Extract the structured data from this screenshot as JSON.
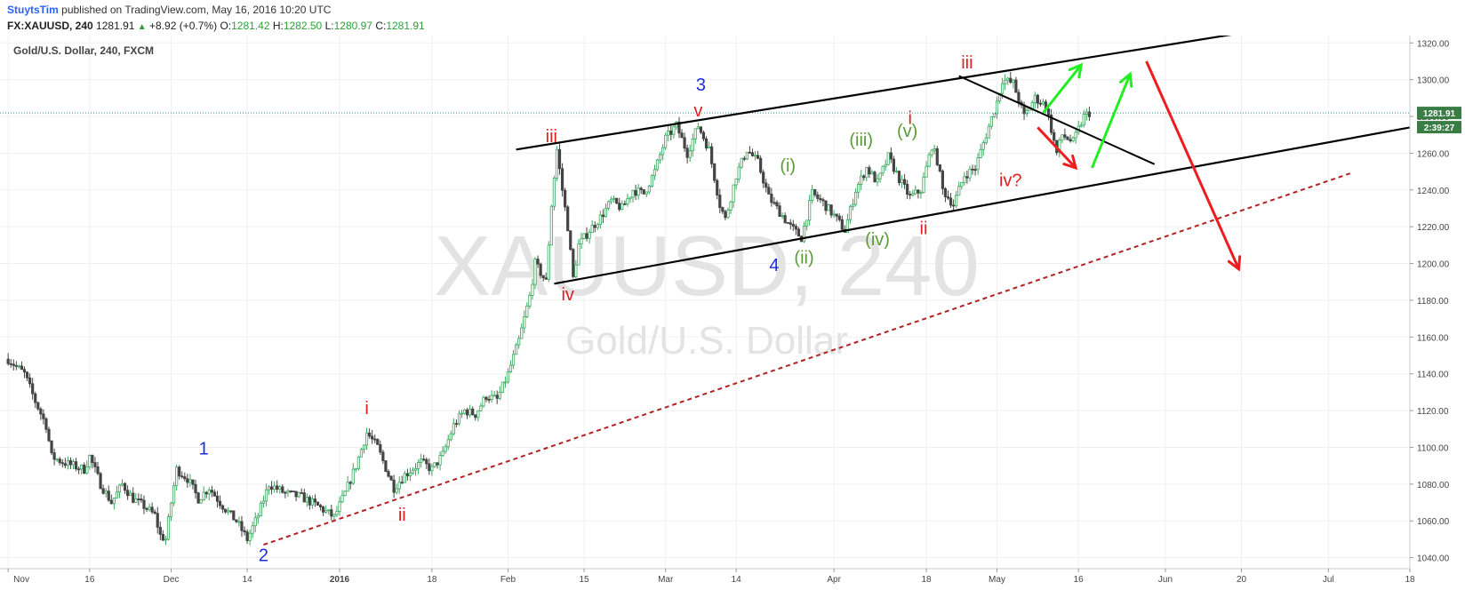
{
  "header": {
    "username": "StuytsTim",
    "published_text": "published on TradingView.com, May 16, 2016 10:20 UTC",
    "symbol_line": "FX:XAUUSD, 240",
    "last": "1281.91",
    "change": "+8.92 (+0.7%)",
    "open_label": "O:",
    "open": "1281.42",
    "high_label": "H:",
    "high": "1282.50",
    "low_label": "L:",
    "low": "1280.97",
    "close_label": "C:",
    "close": "1281.91"
  },
  "chart_data": {
    "type": "candlestick",
    "title": "Gold/U.S. Dollar, 240, FXCM",
    "watermark_symbol": "XAUUSD, 240",
    "watermark_name": "Gold/U.S. Dollar",
    "x_ticks": [
      "Nov",
      "16",
      "Dec",
      "14",
      "2016",
      "18",
      "Feb",
      "15",
      "Mar",
      "14",
      "Apr",
      "18",
      "May",
      "16",
      "Jun",
      "20",
      "Jul",
      "18"
    ],
    "x_tick_days": [
      0,
      15,
      30,
      44,
      61,
      78,
      92,
      106,
      121,
      134,
      152,
      169,
      182,
      197,
      213,
      227,
      243,
      258
    ],
    "y_ticks": [
      1040,
      1060,
      1080,
      1100,
      1120,
      1140,
      1160,
      1180,
      1200,
      1220,
      1240,
      1260,
      1280,
      1300,
      1320
    ],
    "y_tick_labels": [
      "1040.00",
      "1060.00",
      "1080.00",
      "1100.00",
      "1120.00",
      "1140.00",
      "1160.00",
      "1180.00",
      "1200.00",
      "1220.00",
      "1240.00",
      "1260.00",
      "1280.00",
      "1300.00",
      "1320.00"
    ],
    "ylim": [
      1034,
      1324
    ],
    "xlim_days": [
      -1.5,
      258
    ],
    "last_price": 1281.91,
    "last_price_label": "1281.91",
    "countdown_label": "2:39:27",
    "price_path": [
      [
        0,
        1148
      ],
      [
        3,
        1140
      ],
      [
        5,
        1125
      ],
      [
        7,
        1112
      ],
      [
        8,
        1095
      ],
      [
        10,
        1092
      ],
      [
        12,
        1090
      ],
      [
        14,
        1088
      ],
      [
        15,
        1095
      ],
      [
        17,
        1080
      ],
      [
        19,
        1070
      ],
      [
        21,
        1080
      ],
      [
        23,
        1072
      ],
      [
        25,
        1068
      ],
      [
        27,
        1063
      ],
      [
        28,
        1052
      ],
      [
        29,
        1050
      ],
      [
        30,
        1070
      ],
      [
        31,
        1088
      ],
      [
        33,
        1083
      ],
      [
        35,
        1072
      ],
      [
        37,
        1078
      ],
      [
        39,
        1070
      ],
      [
        41,
        1063
      ],
      [
        42,
        1060
      ],
      [
        44,
        1050
      ],
      [
        46,
        1063
      ],
      [
        48,
        1080
      ],
      [
        51,
        1075
      ],
      [
        54,
        1073
      ],
      [
        57,
        1068
      ],
      [
        60,
        1062
      ],
      [
        62,
        1075
      ],
      [
        64,
        1090
      ],
      [
        66,
        1108
      ],
      [
        68,
        1100
      ],
      [
        70,
        1085
      ],
      [
        71,
        1078
      ],
      [
        73,
        1085
      ],
      [
        76,
        1092
      ],
      [
        78,
        1088
      ],
      [
        80,
        1096
      ],
      [
        82,
        1112
      ],
      [
        84,
        1120
      ],
      [
        86,
        1118
      ],
      [
        88,
        1128
      ],
      [
        90,
        1126
      ],
      [
        92,
        1140
      ],
      [
        94,
        1158
      ],
      [
        96,
        1182
      ],
      [
        97,
        1200
      ],
      [
        99,
        1190
      ],
      [
        100,
        1232
      ],
      [
        101,
        1262
      ],
      [
        102,
        1240
      ],
      [
        103,
        1220
      ],
      [
        104,
        1192
      ],
      [
        105,
        1210
      ],
      [
        107,
        1218
      ],
      [
        109,
        1225
      ],
      [
        111,
        1234
      ],
      [
        113,
        1230
      ],
      [
        115,
        1240
      ],
      [
        117,
        1238
      ],
      [
        119,
        1250
      ],
      [
        121,
        1268
      ],
      [
        123,
        1275
      ],
      [
        125,
        1260
      ],
      [
        127,
        1275
      ],
      [
        129,
        1262
      ],
      [
        131,
        1232
      ],
      [
        132,
        1224
      ],
      [
        134,
        1248
      ],
      [
        136,
        1262
      ],
      [
        138,
        1255
      ],
      [
        140,
        1236
      ],
      [
        142,
        1228
      ],
      [
        144,
        1220
      ],
      [
        146,
        1214
      ],
      [
        148,
        1238
      ],
      [
        150,
        1233
      ],
      [
        152,
        1226
      ],
      [
        154,
        1218
      ],
      [
        156,
        1240
      ],
      [
        158,
        1252
      ],
      [
        160,
        1244
      ],
      [
        162,
        1258
      ],
      [
        164,
        1246
      ],
      [
        166,
        1236
      ],
      [
        168,
        1240
      ],
      [
        170,
        1264
      ],
      [
        171,
        1256
      ],
      [
        172,
        1240
      ],
      [
        174,
        1232
      ],
      [
        176,
        1248
      ],
      [
        178,
        1252
      ],
      [
        180,
        1270
      ],
      [
        182,
        1288
      ],
      [
        183,
        1300
      ],
      [
        185,
        1298
      ],
      [
        187,
        1280
      ],
      [
        189,
        1290
      ],
      [
        191,
        1286
      ],
      [
        193,
        1260
      ],
      [
        194,
        1270
      ],
      [
        196,
        1266
      ],
      [
        198,
        1280
      ],
      [
        199,
        1282
      ]
    ],
    "annotations": [
      {
        "text": "1",
        "color": "#1c2ae0",
        "size": 20,
        "day": 36,
        "price": 1096
      },
      {
        "text": "2",
        "color": "#1c2ae0",
        "size": 20,
        "day": 47,
        "price": 1038
      },
      {
        "text": "3",
        "color": "#1c2ae0",
        "size": 20,
        "day": 127.5,
        "price": 1294
      },
      {
        "text": "4",
        "color": "#1c2ae0",
        "size": 20,
        "day": 141,
        "price": 1196
      },
      {
        "text": "i",
        "color": "#e02020",
        "size": 20,
        "day": 66,
        "price": 1118
      },
      {
        "text": "ii",
        "color": "#e02020",
        "size": 20,
        "day": 72.5,
        "price": 1060
      },
      {
        "text": "iii",
        "color": "#e02020",
        "size": 20,
        "day": 100,
        "price": 1266
      },
      {
        "text": "iv",
        "color": "#e02020",
        "size": 20,
        "day": 103,
        "price": 1180
      },
      {
        "text": "v",
        "color": "#e02020",
        "size": 20,
        "day": 127,
        "price": 1280
      },
      {
        "text": "i",
        "color": "#e02020",
        "size": 20,
        "day": 166,
        "price": 1276
      },
      {
        "text": "ii",
        "color": "#e02020",
        "size": 20,
        "day": 168.5,
        "price": 1216
      },
      {
        "text": "iii",
        "color": "#e02020",
        "size": 20,
        "day": 176.5,
        "price": 1306
      },
      {
        "text": "iv?",
        "color": "#e02020",
        "size": 20,
        "day": 184.5,
        "price": 1242
      },
      {
        "text": "(i)",
        "color": "#5b9a3a",
        "size": 20,
        "day": 143.5,
        "price": 1250
      },
      {
        "text": "(ii)",
        "color": "#5b9a3a",
        "size": 20,
        "day": 146.5,
        "price": 1200
      },
      {
        "text": "(iii)",
        "color": "#5b9a3a",
        "size": 20,
        "day": 157,
        "price": 1264
      },
      {
        "text": "(iv)",
        "color": "#5b9a3a",
        "size": 20,
        "day": 160,
        "price": 1210
      },
      {
        "text": "(v)",
        "color": "#5b9a3a",
        "size": 20,
        "day": 165.5,
        "price": 1269
      }
    ],
    "trend_lines": [
      {
        "points": [
          [
            93.5,
            1262
          ],
          [
            232.5,
            1328
          ]
        ],
        "color": "#000000",
        "width": 2.2,
        "dash": false
      },
      {
        "points": [
          [
            100.5,
            1189
          ],
          [
            258,
            1274
          ]
        ],
        "color": "#000000",
        "width": 2.2,
        "dash": false
      },
      {
        "points": [
          [
            175,
            1302
          ],
          [
            211,
            1254
          ]
        ],
        "color": "#000000",
        "width": 2,
        "dash": false
      },
      {
        "points": [
          [
            47,
            1047
          ],
          [
            247,
            1249
          ]
        ],
        "color": "#b22222",
        "width": 2,
        "dash": true
      }
    ],
    "arrows": [
      {
        "from": [
          190.5,
          1282
        ],
        "to": [
          197.5,
          1308
        ],
        "color": "#22ee22"
      },
      {
        "from": [
          199.5,
          1252
        ],
        "to": [
          206.5,
          1303
        ],
        "color": "#22ee22"
      },
      {
        "from": [
          189.5,
          1274
        ],
        "to": [
          196.5,
          1252
        ],
        "color": "#ee1c1c"
      },
      {
        "from": [
          209.5,
          1310
        ],
        "to": [
          226.5,
          1197
        ],
        "color": "#ee1c1c"
      }
    ]
  },
  "colors": {
    "up_candle": "#3aa85c",
    "down_candle": "#444444",
    "grid": "#eef0f3",
    "axis_text": "#444444",
    "price_label_bg": "#3a7d44"
  }
}
